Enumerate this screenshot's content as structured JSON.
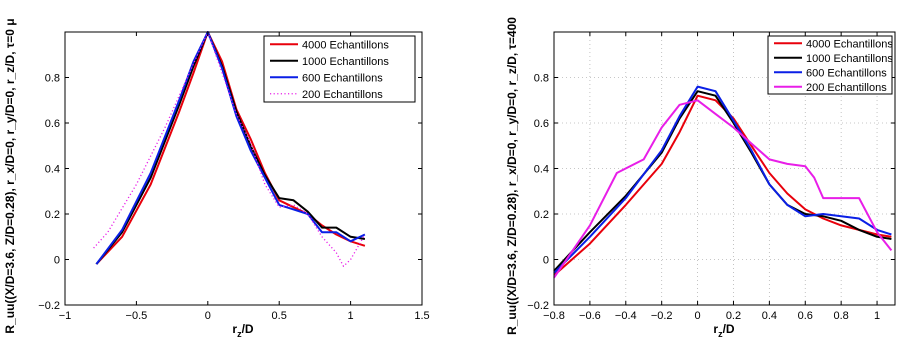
{
  "chart_data": [
    {
      "type": "line",
      "xlabel": "r_z/D",
      "ylabel": "R_uu((X/D=3.6, Z/D=0.28), r_x/D=0, r_y/D=0, r_z/D, τ=0 μ",
      "xlim": [
        -1,
        1.5
      ],
      "ylim": [
        -0.2,
        1.0
      ],
      "xticks": [
        "−1",
        "−0.5",
        "0",
        "0.5",
        "1",
        "1.5"
      ],
      "yticks": [
        "−0.2",
        "0",
        "0.2",
        "0.4",
        "0.6",
        "0.8"
      ],
      "grid": false,
      "legend_position": "top-right",
      "series": [
        {
          "name": "4000 Echantillons",
          "color": "#e8000b",
          "style": "solid",
          "points": [
            [
              -0.78,
              -0.02
            ],
            [
              -0.6,
              0.1
            ],
            [
              -0.4,
              0.33
            ],
            [
              -0.2,
              0.65
            ],
            [
              -0.1,
              0.82
            ],
            [
              0,
              1.0
            ],
            [
              0.1,
              0.87
            ],
            [
              0.2,
              0.66
            ],
            [
              0.3,
              0.53
            ],
            [
              0.4,
              0.38
            ],
            [
              0.5,
              0.26
            ],
            [
              0.6,
              0.23
            ],
            [
              0.7,
              0.2
            ],
            [
              0.8,
              0.15
            ],
            [
              0.9,
              0.11
            ],
            [
              1.0,
              0.08
            ],
            [
              1.1,
              0.06
            ]
          ]
        },
        {
          "name": "1000 Echantillons",
          "color": "#000000",
          "style": "solid",
          "points": [
            [
              -0.78,
              -0.02
            ],
            [
              -0.6,
              0.12
            ],
            [
              -0.4,
              0.36
            ],
            [
              -0.2,
              0.68
            ],
            [
              -0.1,
              0.85
            ],
            [
              0,
              1.0
            ],
            [
              0.1,
              0.85
            ],
            [
              0.2,
              0.65
            ],
            [
              0.3,
              0.5
            ],
            [
              0.4,
              0.37
            ],
            [
              0.5,
              0.27
            ],
            [
              0.6,
              0.26
            ],
            [
              0.7,
              0.21
            ],
            [
              0.8,
              0.14
            ],
            [
              0.9,
              0.14
            ],
            [
              1.0,
              0.1
            ],
            [
              1.1,
              0.09
            ]
          ]
        },
        {
          "name": "600 Echantillons",
          "color": "#0a1fe6",
          "style": "solid",
          "points": [
            [
              -0.78,
              -0.02
            ],
            [
              -0.6,
              0.13
            ],
            [
              -0.4,
              0.38
            ],
            [
              -0.2,
              0.7
            ],
            [
              -0.1,
              0.87
            ],
            [
              0,
              1.0
            ],
            [
              0.1,
              0.84
            ],
            [
              0.2,
              0.63
            ],
            [
              0.3,
              0.48
            ],
            [
              0.4,
              0.36
            ],
            [
              0.5,
              0.24
            ],
            [
              0.6,
              0.22
            ],
            [
              0.7,
              0.2
            ],
            [
              0.8,
              0.12
            ],
            [
              0.9,
              0.12
            ],
            [
              1.0,
              0.08
            ],
            [
              1.1,
              0.11
            ]
          ]
        },
        {
          "name": "200 Echantillons",
          "color": "#e81ee8",
          "style": "dotted",
          "points": [
            [
              -0.8,
              0.05
            ],
            [
              -0.7,
              0.12
            ],
            [
              -0.5,
              0.33
            ],
            [
              -0.3,
              0.58
            ],
            [
              -0.1,
              0.86
            ],
            [
              0,
              1.0
            ],
            [
              0.1,
              0.82
            ],
            [
              0.2,
              0.64
            ],
            [
              0.3,
              0.51
            ],
            [
              0.4,
              0.33
            ],
            [
              0.5,
              0.23
            ],
            [
              0.6,
              0.24
            ],
            [
              0.7,
              0.2
            ],
            [
              0.8,
              0.1
            ],
            [
              0.9,
              0.03
            ],
            [
              0.95,
              -0.03
            ],
            [
              1.0,
              0.0
            ],
            [
              1.1,
              0.11
            ]
          ]
        }
      ]
    },
    {
      "type": "line",
      "xlabel": "r_z/D",
      "ylabel": "R_uu((X/D=3.6, Z/D=0.28), r_x/D=0, r_y/D=0, r_z/D, τ=400",
      "xlim": [
        -0.8,
        1.1
      ],
      "ylim": [
        -0.2,
        1.0
      ],
      "xticks": [
        "−0.8",
        "−0.6",
        "−0.4",
        "−0.2",
        "0",
        "0.2",
        "0.4",
        "0.6",
        "0.8",
        "1"
      ],
      "yticks": [
        "−0.2",
        "0",
        "0.2",
        "0.4",
        "0.6",
        "0.8"
      ],
      "grid": true,
      "legend_position": "top-right",
      "series": [
        {
          "name": "4000 Echantillons",
          "color": "#e8000b",
          "style": "solid",
          "points": [
            [
              -0.8,
              -0.07
            ],
            [
              -0.6,
              0.07
            ],
            [
              -0.4,
              0.24
            ],
            [
              -0.2,
              0.42
            ],
            [
              -0.1,
              0.56
            ],
            [
              0,
              0.72
            ],
            [
              0.1,
              0.7
            ],
            [
              0.2,
              0.62
            ],
            [
              0.3,
              0.5
            ],
            [
              0.4,
              0.38
            ],
            [
              0.5,
              0.29
            ],
            [
              0.6,
              0.22
            ],
            [
              0.7,
              0.18
            ],
            [
              0.8,
              0.15
            ],
            [
              0.9,
              0.13
            ],
            [
              1.0,
              0.11
            ],
            [
              1.08,
              0.1
            ]
          ]
        },
        {
          "name": "1000 Echantillons",
          "color": "#000000",
          "style": "solid",
          "points": [
            [
              -0.8,
              -0.05
            ],
            [
              -0.6,
              0.12
            ],
            [
              -0.4,
              0.28
            ],
            [
              -0.2,
              0.47
            ],
            [
              -0.1,
              0.62
            ],
            [
              0,
              0.74
            ],
            [
              0.1,
              0.72
            ],
            [
              0.2,
              0.6
            ],
            [
              0.3,
              0.47
            ],
            [
              0.4,
              0.33
            ],
            [
              0.5,
              0.24
            ],
            [
              0.6,
              0.2
            ],
            [
              0.7,
              0.19
            ],
            [
              0.8,
              0.17
            ],
            [
              0.9,
              0.13
            ],
            [
              1.0,
              0.1
            ],
            [
              1.08,
              0.09
            ]
          ]
        },
        {
          "name": "600 Echantillons",
          "color": "#0a1fe6",
          "style": "solid",
          "points": [
            [
              -0.8,
              -0.06
            ],
            [
              -0.6,
              0.1
            ],
            [
              -0.4,
              0.27
            ],
            [
              -0.2,
              0.48
            ],
            [
              -0.1,
              0.63
            ],
            [
              0,
              0.76
            ],
            [
              0.1,
              0.74
            ],
            [
              0.2,
              0.61
            ],
            [
              0.3,
              0.48
            ],
            [
              0.4,
              0.33
            ],
            [
              0.5,
              0.24
            ],
            [
              0.6,
              0.19
            ],
            [
              0.7,
              0.2
            ],
            [
              0.8,
              0.19
            ],
            [
              0.9,
              0.18
            ],
            [
              1.0,
              0.13
            ],
            [
              1.08,
              0.11
            ]
          ]
        },
        {
          "name": "200 Echantillons",
          "color": "#e81ee8",
          "style": "solid",
          "points": [
            [
              -0.8,
              -0.08
            ],
            [
              -0.6,
              0.15
            ],
            [
              -0.45,
              0.38
            ],
            [
              -0.3,
              0.44
            ],
            [
              -0.2,
              0.58
            ],
            [
              -0.1,
              0.68
            ],
            [
              0,
              0.7
            ],
            [
              0.1,
              0.64
            ],
            [
              0.2,
              0.58
            ],
            [
              0.3,
              0.51
            ],
            [
              0.4,
              0.44
            ],
            [
              0.5,
              0.42
            ],
            [
              0.6,
              0.41
            ],
            [
              0.65,
              0.36
            ],
            [
              0.7,
              0.27
            ],
            [
              0.8,
              0.27
            ],
            [
              0.9,
              0.27
            ],
            [
              1.0,
              0.12
            ],
            [
              1.08,
              0.04
            ]
          ]
        }
      ]
    }
  ]
}
